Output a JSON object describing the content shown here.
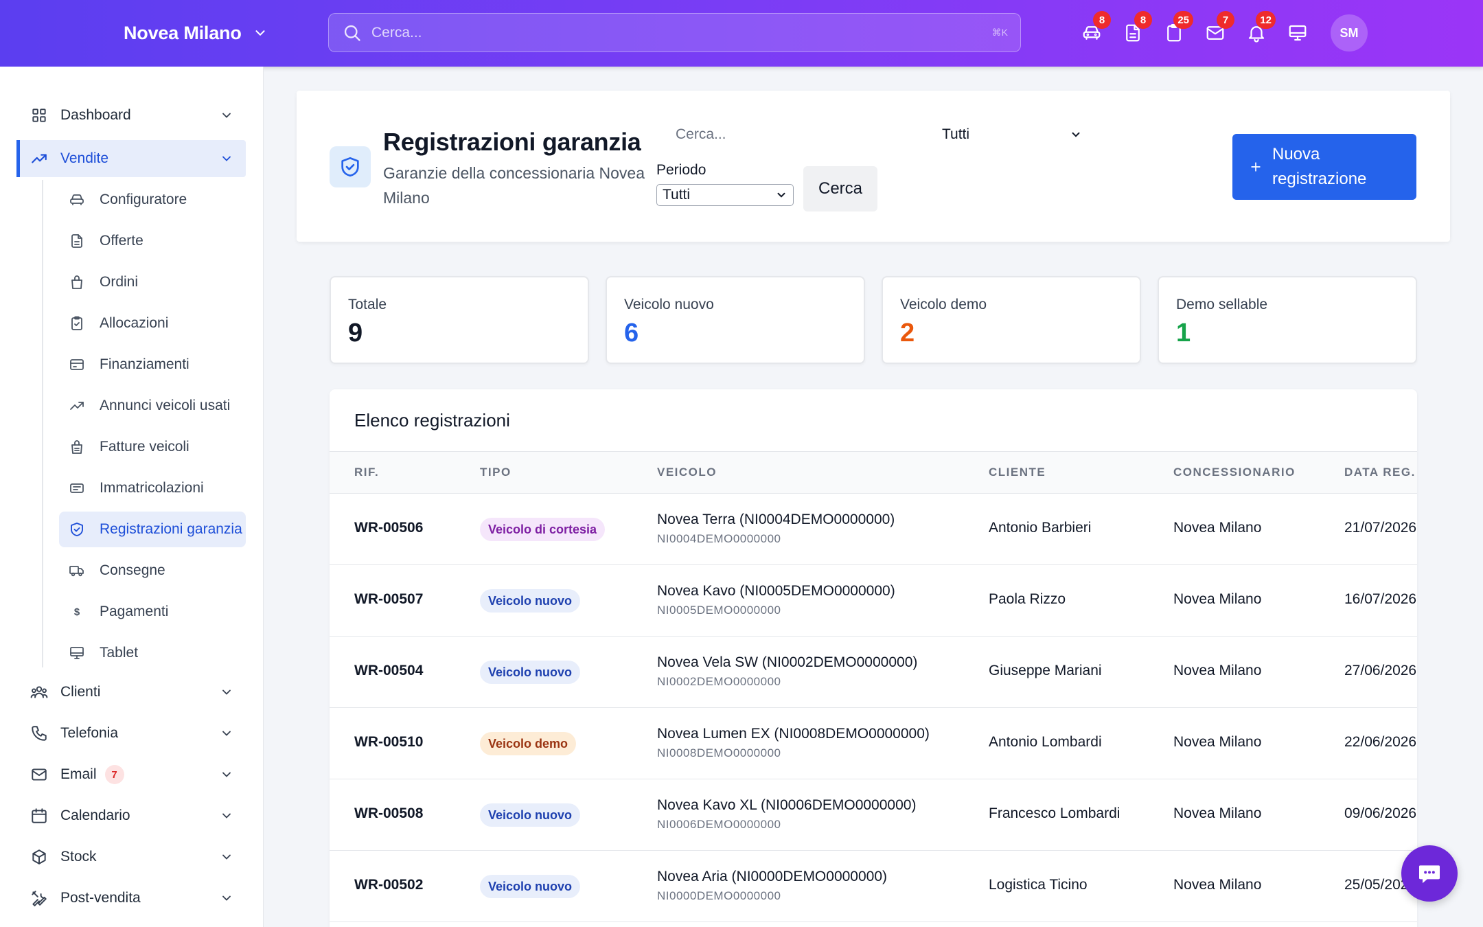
{
  "topbar": {
    "brand": "Novea Milano",
    "search_placeholder": "Cerca...",
    "shortcut": "⌘K",
    "icons": [
      {
        "name": "car-icon",
        "badge": "8"
      },
      {
        "name": "document-icon",
        "badge": "8"
      },
      {
        "name": "clipboard-icon",
        "badge": "25"
      },
      {
        "name": "mail-icon",
        "badge": "7"
      },
      {
        "name": "bell-icon",
        "badge": "12"
      },
      {
        "name": "monitor-icon",
        "badge": ""
      }
    ],
    "avatar": "SM"
  },
  "sidebar": {
    "items": [
      {
        "label": "Dashboard",
        "icon": "grid-icon"
      },
      {
        "label": "Vendite",
        "icon": "trending-up-icon",
        "active": true
      },
      {
        "label": "Clienti",
        "icon": "users-icon"
      },
      {
        "label": "Telefonia",
        "icon": "phone-icon"
      },
      {
        "label": "Email",
        "icon": "mail-icon",
        "badge": "7"
      },
      {
        "label": "Calendario",
        "icon": "calendar-icon"
      },
      {
        "label": "Stock",
        "icon": "box-icon"
      },
      {
        "label": "Post-vendita",
        "icon": "tools-icon"
      }
    ],
    "sub_items": [
      {
        "label": "Configuratore",
        "icon": "car-icon"
      },
      {
        "label": "Offerte",
        "icon": "document-icon"
      },
      {
        "label": "Ordini",
        "icon": "bag-icon"
      },
      {
        "label": "Allocazioni",
        "icon": "clipboard-check-icon"
      },
      {
        "label": "Finanziamenti",
        "icon": "credit-card-icon"
      },
      {
        "label": "Annunci veicoli usati",
        "icon": "trending-up-icon"
      },
      {
        "label": "Fatture veicoli",
        "icon": "invoice-bag-icon"
      },
      {
        "label": "Immatricolazioni",
        "icon": "id-card-icon"
      },
      {
        "label": "Registrazioni garanzia",
        "icon": "shield-check-icon",
        "active": true
      },
      {
        "label": "Consegne",
        "icon": "truck-icon"
      },
      {
        "label": "Pagamenti",
        "icon": "dollar-icon"
      },
      {
        "label": "Tablet",
        "icon": "monitor-icon"
      }
    ]
  },
  "header": {
    "title": "Registrazioni garanzia",
    "subtitle": "Garanzie della concessionaria Novea Milano",
    "search_placeholder": "Cerca...",
    "type_select": "Tutti",
    "periodo_label": "Periodo",
    "periodo_select": "Tutti",
    "search_button": "Cerca",
    "new_button": "Nuova registrazione"
  },
  "stats": [
    {
      "label": "Totale",
      "value": "9",
      "color": "#111827"
    },
    {
      "label": "Veicolo nuovo",
      "value": "6",
      "color": "#2563eb"
    },
    {
      "label": "Veicolo demo",
      "value": "2",
      "color": "#ea580c"
    },
    {
      "label": "Demo sellable",
      "value": "1",
      "color": "#16a34a"
    }
  ],
  "table": {
    "title": "Elenco registrazioni",
    "columns": [
      "RIF.",
      "TIPO",
      "VEICOLO",
      "CLIENTE",
      "CONCESSIONARIO",
      "DATA REG."
    ],
    "rows": [
      {
        "ref": "WR-00506",
        "tipo": "Veicolo di cortesia",
        "kind": "cortesia",
        "veicolo": "Novea Terra (NI0004DEMO0000000)",
        "vin": "NI0004DEMO0000000",
        "cliente": "Antonio Barbieri",
        "concessionario": "Novea Milano",
        "data": "21/07/2026"
      },
      {
        "ref": "WR-00507",
        "tipo": "Veicolo nuovo",
        "kind": "nuovo",
        "veicolo": "Novea Kavo (NI0005DEMO0000000)",
        "vin": "NI0005DEMO0000000",
        "cliente": "Paola Rizzo",
        "concessionario": "Novea Milano",
        "data": "16/07/2026"
      },
      {
        "ref": "WR-00504",
        "tipo": "Veicolo nuovo",
        "kind": "nuovo",
        "veicolo": "Novea Vela SW (NI0002DEMO0000000)",
        "vin": "NI0002DEMO0000000",
        "cliente": "Giuseppe Mariani",
        "concessionario": "Novea Milano",
        "data": "27/06/2026"
      },
      {
        "ref": "WR-00510",
        "tipo": "Veicolo demo",
        "kind": "demo",
        "veicolo": "Novea Lumen EX (NI0008DEMO0000000)",
        "vin": "NI0008DEMO0000000",
        "cliente": "Antonio Lombardi",
        "concessionario": "Novea Milano",
        "data": "22/06/2026"
      },
      {
        "ref": "WR-00508",
        "tipo": "Veicolo nuovo",
        "kind": "nuovo",
        "veicolo": "Novea Kavo XL (NI0006DEMO0000000)",
        "vin": "NI0006DEMO0000000",
        "cliente": "Francesco Lombardi",
        "concessionario": "Novea Milano",
        "data": "09/06/2026"
      },
      {
        "ref": "WR-00502",
        "tipo": "Veicolo nuovo",
        "kind": "nuovo",
        "veicolo": "Novea Aria (NI0000DEMO0000000)",
        "vin": "NI0000DEMO0000000",
        "cliente": "Logistica Ticino",
        "concessionario": "Novea Milano",
        "data": "25/05/2026"
      }
    ]
  }
}
